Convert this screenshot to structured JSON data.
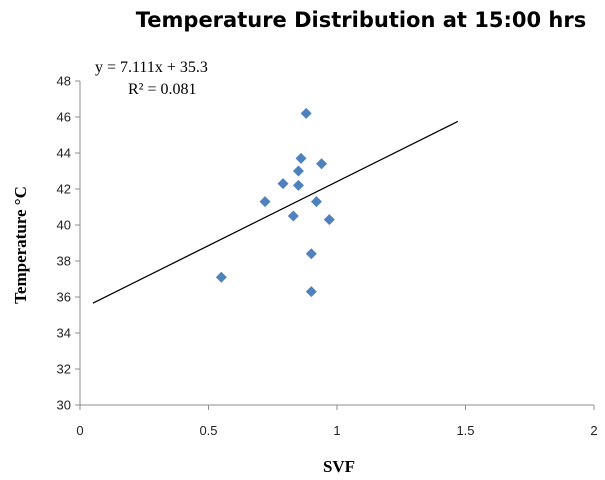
{
  "chart_data": {
    "type": "scatter",
    "title": "Temperature Distribution at 15:00 hrs",
    "xlabel": "SVF",
    "ylabel": "Temperature °C",
    "xlim": [
      0,
      2
    ],
    "ylim": [
      30,
      48
    ],
    "x_ticks": [
      0,
      0.5,
      1,
      1.5,
      2
    ],
    "x_tick_labels": [
      "0",
      "0.5",
      "1",
      "1.5",
      "2"
    ],
    "y_ticks": [
      30,
      32,
      34,
      36,
      38,
      40,
      42,
      44,
      46,
      48
    ],
    "y_tick_labels": [
      "30",
      "32",
      "34",
      "36",
      "38",
      "40",
      "42",
      "44",
      "46",
      "48"
    ],
    "grid": false,
    "legend": "none",
    "marker": "diamond",
    "marker_color": "#4f81bd",
    "trendline_color": "#000000",
    "points": [
      {
        "x": 0.55,
        "y": 37.1
      },
      {
        "x": 0.72,
        "y": 41.3
      },
      {
        "x": 0.79,
        "y": 42.3
      },
      {
        "x": 0.83,
        "y": 40.5
      },
      {
        "x": 0.85,
        "y": 42.2
      },
      {
        "x": 0.85,
        "y": 43.0
      },
      {
        "x": 0.86,
        "y": 43.7
      },
      {
        "x": 0.88,
        "y": 46.2
      },
      {
        "x": 0.9,
        "y": 38.4
      },
      {
        "x": 0.9,
        "y": 36.3
      },
      {
        "x": 0.92,
        "y": 41.3
      },
      {
        "x": 0.94,
        "y": 43.4
      },
      {
        "x": 0.97,
        "y": 40.3
      }
    ],
    "trendline": {
      "slope": 7.111,
      "intercept": 35.3,
      "x_range": [
        0.05,
        1.47
      ],
      "equation_text": "y = 7.111x + 35.3",
      "r2_text": "R² = 0.081"
    }
  }
}
